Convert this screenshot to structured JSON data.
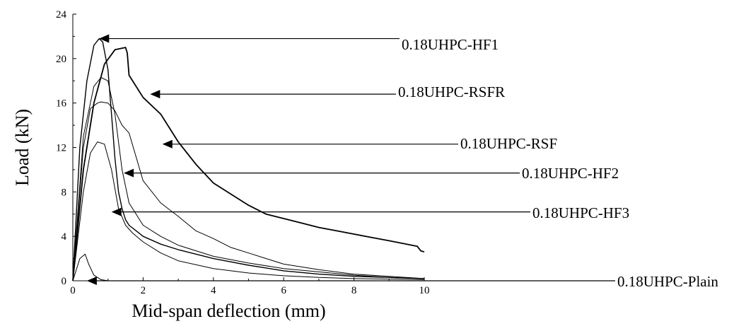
{
  "chart_data": {
    "type": "line",
    "title": "",
    "xlabel": "Mid-span deflection (mm)",
    "ylabel": "Load (kN)",
    "xlim": [
      0,
      10
    ],
    "ylim": [
      0,
      24
    ],
    "x_ticks": [
      "0",
      "2",
      "4",
      "6",
      "8",
      "10"
    ],
    "y_ticks": [
      "0",
      "4",
      "8",
      "12",
      "16",
      "20",
      "24"
    ],
    "grid": false,
    "series": [
      {
        "name": "0.18UHPC-Plain",
        "x": [
          0,
          0.2,
          0.35,
          0.45,
          0.6,
          0.8,
          1.0,
          10
        ],
        "y": [
          0,
          2.0,
          2.4,
          1.5,
          0.5,
          0.1,
          0,
          0
        ]
      },
      {
        "name": "0.18UHPC-HF1",
        "x": [
          0,
          0.2,
          0.4,
          0.6,
          0.75,
          0.85,
          1.0,
          1.1,
          1.2,
          1.3,
          1.4,
          1.5,
          1.6,
          1.8,
          2.0,
          2.5,
          3.0,
          4.0,
          5.0,
          6.0,
          7.0,
          8.0,
          9.0,
          10.0
        ],
        "y": [
          0,
          12,
          18,
          21.2,
          21.8,
          21.5,
          19,
          15,
          11,
          8,
          6.5,
          5.5,
          5.0,
          4.5,
          4.0,
          3.3,
          2.8,
          2.0,
          1.4,
          0.9,
          0.6,
          0.4,
          0.3,
          0.2
        ]
      },
      {
        "name": "0.18UHPC-RSFR",
        "x": [
          0,
          0.3,
          0.6,
          0.9,
          1.2,
          1.5,
          1.55,
          1.6,
          2.0,
          2.5,
          3.0,
          3.5,
          4.0,
          4.5,
          5.0,
          5.5,
          6.0,
          6.5,
          7.0,
          7.5,
          8.0,
          8.5,
          9.0,
          9.5,
          9.8,
          9.9,
          10.0
        ],
        "y": [
          0,
          10,
          16,
          19.5,
          20.8,
          21.0,
          20.5,
          18.5,
          16.5,
          15.0,
          12.5,
          10.5,
          8.8,
          7.8,
          6.8,
          6.0,
          5.6,
          5.2,
          4.8,
          4.5,
          4.2,
          3.9,
          3.6,
          3.3,
          3.1,
          2.7,
          2.6
        ]
      },
      {
        "name": "0.18UHPC-RSF",
        "x": [
          0,
          0.3,
          0.5,
          0.7,
          0.8,
          1.0,
          1.2,
          1.4,
          1.6,
          2.0,
          2.5,
          3.0,
          3.5,
          4.0,
          4.5,
          5.0,
          5.5,
          6.0,
          7.0,
          8.0,
          9.0,
          10.0
        ],
        "y": [
          0,
          12,
          15.5,
          16,
          16.1,
          16,
          15.3,
          14,
          13.3,
          9.0,
          7.0,
          5.8,
          4.5,
          3.8,
          3.0,
          2.5,
          2.0,
          1.5,
          1.0,
          0.6,
          0.4,
          0.2
        ]
      },
      {
        "name": "0.18UHPC-HF2",
        "x": [
          0,
          0.3,
          0.6,
          0.8,
          1.0,
          1.2,
          1.4,
          1.6,
          2.0,
          2.5,
          3.0,
          4.0,
          5.0,
          6.0,
          7.0,
          8.0,
          9.0,
          10.0
        ],
        "y": [
          0,
          13,
          17.5,
          18.3,
          18,
          15,
          10,
          7.0,
          5.0,
          4.0,
          3.2,
          2.2,
          1.6,
          1.1,
          0.8,
          0.5,
          0.3,
          0.2
        ]
      },
      {
        "name": "0.18UHPC-HF3",
        "x": [
          0,
          0.3,
          0.5,
          0.7,
          0.9,
          1.1,
          1.3,
          1.5,
          1.7,
          2.0,
          2.5,
          3.0,
          4.0,
          5.0,
          6.0,
          7.0,
          8.0,
          9.0,
          10.0
        ],
        "y": [
          0,
          8,
          11.5,
          12.5,
          12.3,
          10,
          6.5,
          5.0,
          4.3,
          3.5,
          2.5,
          1.8,
          1.1,
          0.7,
          0.45,
          0.3,
          0.2,
          0.15,
          0.1
        ]
      }
    ],
    "annotations": [
      {
        "text": "0.18UHPC-HF1",
        "target": [
          0.75,
          21.8
        ]
      },
      {
        "text": "0.18UHPC-RSFR",
        "target": [
          2.2,
          16.8
        ]
      },
      {
        "text": "0.18UHPC-RSF",
        "target": [
          2.55,
          12.3
        ]
      },
      {
        "text": "0.18UHPC-HF2",
        "target": [
          1.45,
          9.7
        ]
      },
      {
        "text": "0.18UHPC-HF3",
        "target": [
          1.1,
          6.2
        ]
      },
      {
        "text": "0.18UHPC-Plain",
        "target": [
          0.4,
          0
        ]
      }
    ]
  }
}
